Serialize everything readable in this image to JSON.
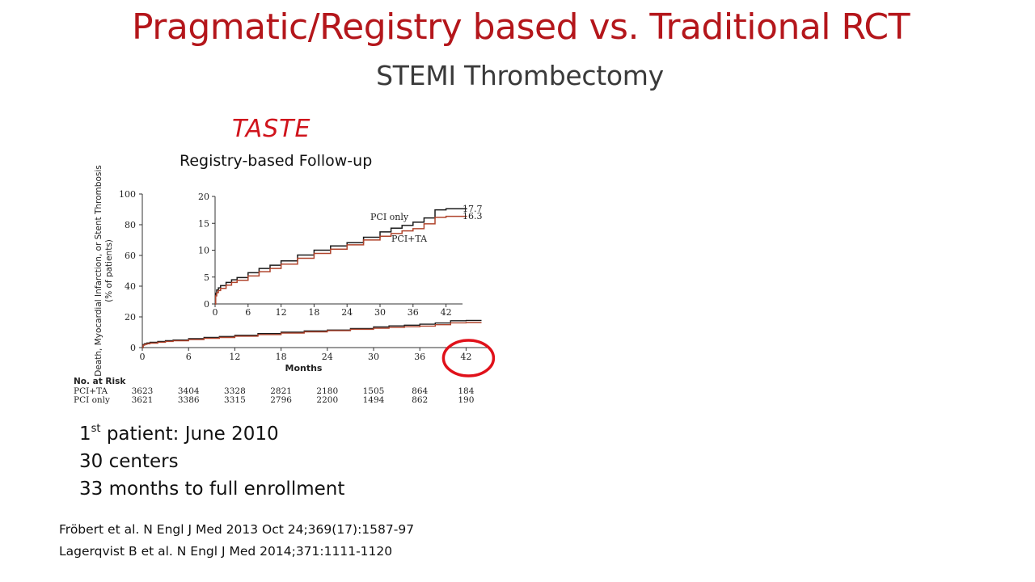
{
  "slide": {
    "title": "Pragmatic/Registry based vs. Traditional RCT",
    "subtitle": "STEMI Thrombectomy"
  },
  "trial": {
    "name": "TASTE",
    "subtitle": "Registry-based Follow-up"
  },
  "facts": {
    "first_patient": {
      "num": "1",
      "sup": "st",
      "text": " patient: June 2010"
    },
    "centers": "30 centers",
    "enrollment": "33 months to full enrollment"
  },
  "references": [
    "Fröbert et al. N Engl J Med 2013 Oct 24;369(17):1587-97",
    "Lagerqvist B et al. N Engl J Med 2014;371:1111-1120"
  ],
  "colors": {
    "title": "#b4161b",
    "pci_only": "#1a1a1a",
    "pci_ta": "#b0442c",
    "highlight": "#e0111a"
  },
  "chart_data": {
    "type": "line",
    "ylabel": "Death, Myocardial Infarction, or Stent Thrombosis (% of patients)",
    "xlabel": "Months",
    "x_ticks": [
      0,
      6,
      12,
      18,
      24,
      30,
      36,
      42
    ],
    "main": {
      "xlim": [
        0,
        45
      ],
      "ylim": [
        0,
        100
      ],
      "y_ticks": [
        0,
        20,
        40,
        60,
        80,
        100
      ]
    },
    "inset": {
      "xlim": [
        0,
        45
      ],
      "ylim": [
        0,
        20
      ],
      "y_ticks": [
        0,
        5,
        10,
        15,
        20
      ]
    },
    "series": [
      {
        "name": "PCI only",
        "end_label": "17.7",
        "points": [
          [
            0,
            0
          ],
          [
            0.1,
            2
          ],
          [
            0.3,
            2.6
          ],
          [
            0.6,
            3
          ],
          [
            1,
            3.4
          ],
          [
            2,
            4
          ],
          [
            3,
            4.5
          ],
          [
            4,
            4.9
          ],
          [
            6,
            5.8
          ],
          [
            8,
            6.6
          ],
          [
            10,
            7.2
          ],
          [
            12,
            8
          ],
          [
            15,
            9.1
          ],
          [
            18,
            10
          ],
          [
            21,
            10.8
          ],
          [
            24,
            11.4
          ],
          [
            27,
            12.4
          ],
          [
            30,
            13.4
          ],
          [
            32,
            14.1
          ],
          [
            34,
            14.6
          ],
          [
            36,
            15.2
          ],
          [
            38,
            16
          ],
          [
            40,
            17.5
          ],
          [
            42,
            17.7
          ],
          [
            44,
            17.7
          ]
        ]
      },
      {
        "name": "PCI+TA",
        "end_label": "16.3",
        "points": [
          [
            0,
            0
          ],
          [
            0.1,
            1.5
          ],
          [
            0.3,
            2.1
          ],
          [
            0.6,
            2.5
          ],
          [
            1,
            2.9
          ],
          [
            2,
            3.5
          ],
          [
            3,
            4
          ],
          [
            4,
            4.4
          ],
          [
            6,
            5.2
          ],
          [
            8,
            6
          ],
          [
            10,
            6.6
          ],
          [
            12,
            7.4
          ],
          [
            15,
            8.5
          ],
          [
            18,
            9.4
          ],
          [
            21,
            10.2
          ],
          [
            24,
            11
          ],
          [
            27,
            11.9
          ],
          [
            30,
            12.6
          ],
          [
            32,
            13.1
          ],
          [
            34,
            13.6
          ],
          [
            36,
            14
          ],
          [
            38,
            14.9
          ],
          [
            40,
            16.1
          ],
          [
            42,
            16.3
          ],
          [
            44,
            16.3
          ]
        ]
      }
    ],
    "highlight_x": 42,
    "at_risk": {
      "title": "No. at Risk",
      "rows": [
        {
          "label": "PCI+TA",
          "values": [
            "3623",
            "3404",
            "3328",
            "2821",
            "2180",
            "1505",
            "864",
            "184"
          ]
        },
        {
          "label": "PCI only",
          "values": [
            "3621",
            "3386",
            "3315",
            "2796",
            "2200",
            "1494",
            "862",
            "190"
          ]
        }
      ]
    }
  }
}
